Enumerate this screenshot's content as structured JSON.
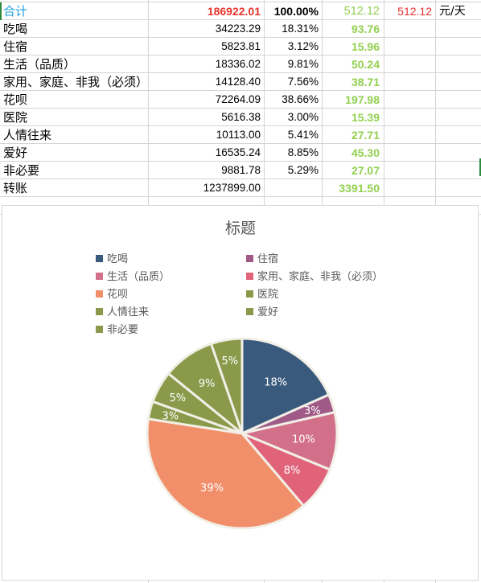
{
  "sheet": {
    "total_row": {
      "name": "合计",
      "amount": "186922.01",
      "percent": "100.00%",
      "per_day": "512.12",
      "per_day_extra": "512.12",
      "unit": "元/天"
    },
    "rows": [
      {
        "name": "吃喝",
        "amount": "34223.29",
        "percent": "18.31%",
        "per_day": "93.76"
      },
      {
        "name": "住宿",
        "amount": "5823.81",
        "percent": "3.12%",
        "per_day": "15.96"
      },
      {
        "name": "生活（品质）",
        "amount": "18336.02",
        "percent": "9.81%",
        "per_day": "50.24"
      },
      {
        "name": "家用、家庭、非我（必须）",
        "amount": "14128.40",
        "percent": "7.56%",
        "per_day": "38.71"
      },
      {
        "name": "花呗",
        "amount": "72264.09",
        "percent": "38.66%",
        "per_day": "197.98"
      },
      {
        "name": "医院",
        "amount": "5616.38",
        "percent": "3.00%",
        "per_day": "15.39"
      },
      {
        "name": "人情往来",
        "amount": "10113.00",
        "percent": "5.41%",
        "per_day": "27.71"
      },
      {
        "name": "爱好",
        "amount": "16535.24",
        "percent": "8.85%",
        "per_day": "45.30"
      },
      {
        "name": "非必要",
        "amount": "9881.78",
        "percent": "5.29%",
        "per_day": "27.07"
      },
      {
        "name": "转账",
        "amount": "1237899.00",
        "percent": "",
        "per_day": "3391.50"
      }
    ]
  },
  "chart_data": {
    "type": "pie",
    "title": "标题",
    "legend_position": "top",
    "categories": [
      "吃喝",
      "住宿",
      "生活（品质）",
      "家用、家庭、非我（必须）",
      "花呗",
      "医院",
      "人情往来",
      "爱好",
      "非必要"
    ],
    "values": [
      34223.29,
      5823.81,
      18336.02,
      14128.4,
      72264.09,
      5616.38,
      10113.0,
      16535.24,
      9881.78
    ],
    "data_labels": [
      "18%",
      "3%",
      "10%",
      "8%",
      "39%",
      "3%",
      "5%",
      "9%",
      "5%"
    ],
    "colors": [
      "#3a5a7d",
      "#a05a87",
      "#d2708a",
      "#e0637a",
      "#f28f6b",
      "#8a9a4a",
      "#8a9a4a",
      "#8a9a4a",
      "#8a9a4a"
    ]
  }
}
